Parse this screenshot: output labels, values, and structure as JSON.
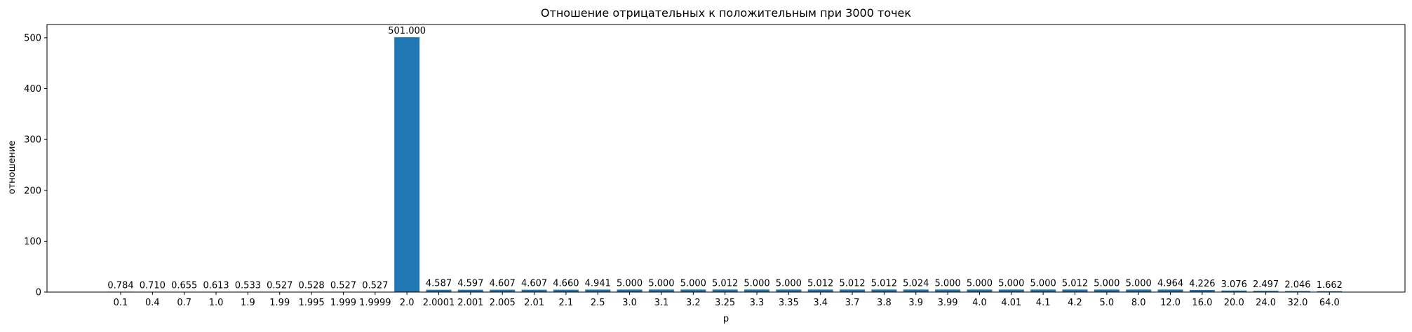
{
  "chart_data": {
    "type": "bar",
    "title": "Отношение отрицательных к положительным при 3000 точек",
    "xlabel": "p",
    "ylabel": "отношение",
    "categories": [
      "0.1",
      "0.4",
      "0.7",
      "1.0",
      "1.9",
      "1.99",
      "1.995",
      "1.999",
      "1.9999",
      "2.0",
      "2.0001",
      "2.001",
      "2.005",
      "2.01",
      "2.1",
      "2.5",
      "3.0",
      "3.1",
      "3.2",
      "3.25",
      "3.3",
      "3.35",
      "3.4",
      "3.7",
      "3.8",
      "3.9",
      "3.99",
      "4.0",
      "4.01",
      "4.1",
      "4.2",
      "5.0",
      "8.0",
      "12.0",
      "16.0",
      "20.0",
      "24.0",
      "32.0",
      "64.0"
    ],
    "values": [
      0.784,
      0.71,
      0.655,
      0.613,
      0.533,
      0.527,
      0.528,
      0.527,
      0.527,
      501.0,
      4.587,
      4.597,
      4.607,
      4.607,
      4.66,
      4.941,
      5.0,
      5.0,
      5.0,
      5.012,
      5.0,
      5.0,
      5.012,
      5.012,
      5.012,
      5.024,
      5.0,
      5.0,
      5.0,
      5.0,
      5.012,
      5.0,
      5.0,
      4.964,
      4.226,
      3.076,
      2.497,
      2.046,
      1.662
    ],
    "value_labels": [
      "0.784",
      "0.710",
      "0.655",
      "0.613",
      "0.533",
      "0.527",
      "0.528",
      "0.527",
      "0.527",
      "501.000",
      "4.587",
      "4.597",
      "4.607",
      "4.607",
      "4.660",
      "4.941",
      "5.000",
      "5.000",
      "5.000",
      "5.012",
      "5.000",
      "5.000",
      "5.012",
      "5.012",
      "5.012",
      "5.024",
      "5.000",
      "5.000",
      "5.000",
      "5.000",
      "5.012",
      "5.000",
      "5.000",
      "4.964",
      "4.226",
      "3.076",
      "2.497",
      "2.046",
      "1.662"
    ],
    "y_ticks": [
      0,
      100,
      200,
      300,
      400,
      500
    ],
    "y_tick_labels": [
      "0",
      "100",
      "200",
      "300",
      "400",
      "500"
    ],
    "ylim": [
      0,
      526
    ],
    "grid": false,
    "bar_color": "#1f77b4"
  }
}
